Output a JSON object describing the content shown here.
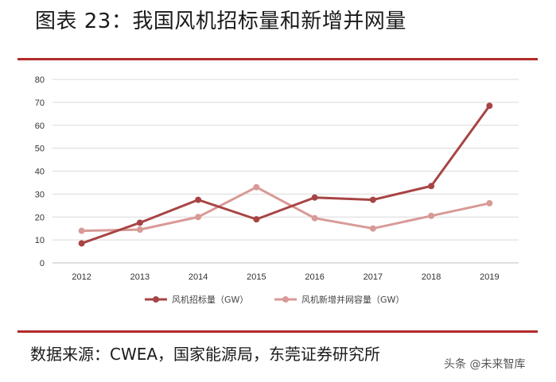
{
  "title": "图表 23：我国风机招标量和新增并网量",
  "source": "数据来源：CWEA，国家能源局，东莞证券研究所",
  "watermark": "头条 @未来智库",
  "colors": {
    "rule": "#b22a2a",
    "series1": "#a84444",
    "series2": "#d89a96",
    "grid": "#d9d9d9"
  },
  "chart_data": {
    "type": "line",
    "x": [
      "2012",
      "2013",
      "2014",
      "2015",
      "2016",
      "2017",
      "2018",
      "2019"
    ],
    "ylim": [
      0,
      80
    ],
    "yticks": [
      0,
      10,
      20,
      30,
      40,
      50,
      60,
      70,
      80
    ],
    "grid": "horizontal",
    "legend_position": "bottom",
    "series": [
      {
        "name": "风机招标量（GW）",
        "values": [
          8.5,
          17.5,
          27.5,
          19,
          28.5,
          27.5,
          33.5,
          68.5
        ]
      },
      {
        "name": "风机新增并网容量（GW）",
        "values": [
          14,
          14.5,
          20,
          33,
          19.5,
          15,
          20.5,
          26
        ]
      }
    ]
  }
}
